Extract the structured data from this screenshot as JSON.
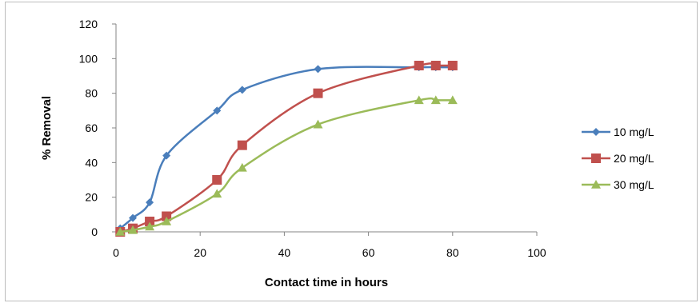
{
  "chart_data": {
    "type": "line",
    "title": "",
    "xlabel": "Contact time in hours",
    "ylabel": "% Removal",
    "xlim": [
      0,
      100
    ],
    "ylim": [
      0,
      120
    ],
    "x_ticks": [
      0,
      20,
      40,
      60,
      80,
      100
    ],
    "y_ticks": [
      0,
      20,
      40,
      60,
      80,
      100,
      120
    ],
    "grid": false,
    "legend_position": "right",
    "x": [
      1,
      4,
      8,
      12,
      24,
      30,
      48,
      72,
      76,
      80
    ],
    "series": [
      {
        "name": "10 mg/L",
        "color": "#4a7ebb",
        "marker": "diamond",
        "values": [
          2,
          8,
          17,
          44,
          70,
          82,
          94,
          95,
          95,
          95
        ]
      },
      {
        "name": "20 mg/L",
        "color": "#c0504d",
        "marker": "square",
        "values": [
          0,
          2,
          6,
          9,
          30,
          50,
          80,
          96,
          96,
          96
        ]
      },
      {
        "name": "30 mg/L",
        "color": "#9bbb59",
        "marker": "triangle",
        "values": [
          0,
          1,
          3,
          6,
          22,
          37,
          62,
          76,
          76,
          76
        ]
      }
    ]
  }
}
